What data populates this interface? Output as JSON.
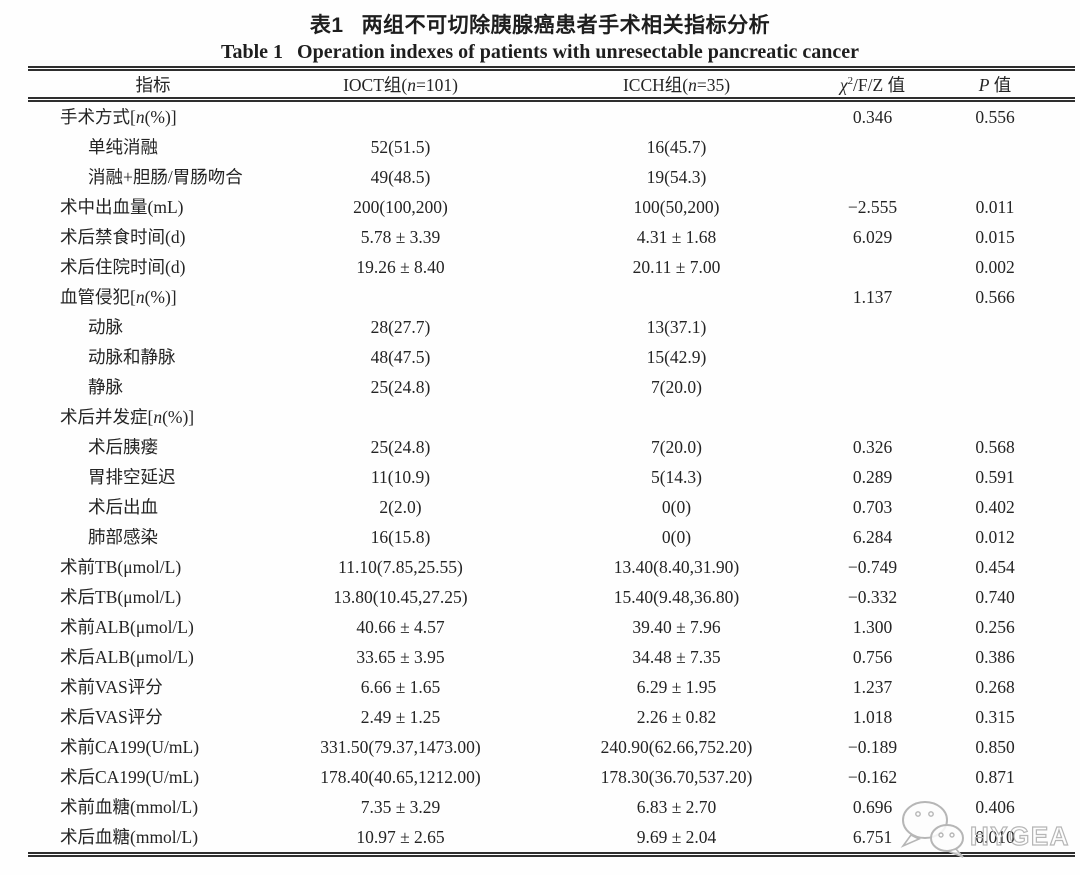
{
  "doc": {
    "title_zh_label": "表1",
    "title_zh": "两组不可切除胰腺癌患者手术相关指标分析",
    "title_en_label": "Table 1",
    "title_en": "Operation indexes of patients with unresectable pancreatic cancer"
  },
  "table": {
    "header": {
      "indicator": "指标",
      "group1": {
        "prefix": "IOCT组(",
        "italic": "n",
        "suffix": "=101)"
      },
      "group2": {
        "prefix": "ICCH组(",
        "italic": "n",
        "suffix": "=35)"
      },
      "stat": {
        "chi": "χ",
        "sup": "2",
        "rest": "/F/Z 值"
      },
      "p": {
        "italic": "P",
        "suffix": " 值"
      }
    },
    "rows": [
      {
        "label": "手术方式[n(%)]",
        "indent": 0,
        "ioct": "",
        "icch": "",
        "stat": "0.346",
        "p": "0.556"
      },
      {
        "label": "单纯消融",
        "indent": 1,
        "ioct": "52(51.5)",
        "icch": "16(45.7)",
        "stat": "",
        "p": ""
      },
      {
        "label": "消融+胆肠/胃肠吻合",
        "indent": 1,
        "ioct": "49(48.5)",
        "icch": "19(54.3)",
        "stat": "",
        "p": ""
      },
      {
        "label": "术中出血量(mL)",
        "indent": 0,
        "ioct": "200(100,200)",
        "icch": "100(50,200)",
        "stat": "−2.555",
        "p": "0.011"
      },
      {
        "label": "术后禁食时间(d)",
        "indent": 0,
        "ioct": "5.78 ± 3.39",
        "icch": "4.31 ± 1.68",
        "stat": "6.029",
        "p": "0.015"
      },
      {
        "label": "术后住院时间(d)",
        "indent": 0,
        "ioct": "19.26 ± 8.40",
        "icch": "20.11 ± 7.00",
        "stat": "",
        "p": "0.002"
      },
      {
        "label": "血管侵犯[n(%)]",
        "indent": 0,
        "ioct": "",
        "icch": "",
        "stat": "1.137",
        "p": "0.566"
      },
      {
        "label": "动脉",
        "indent": 1,
        "ioct": "28(27.7)",
        "icch": "13(37.1)",
        "stat": "",
        "p": ""
      },
      {
        "label": "动脉和静脉",
        "indent": 1,
        "ioct": "48(47.5)",
        "icch": "15(42.9)",
        "stat": "",
        "p": ""
      },
      {
        "label": "静脉",
        "indent": 1,
        "ioct": "25(24.8)",
        "icch": "7(20.0)",
        "stat": "",
        "p": ""
      },
      {
        "label": "术后并发症[n(%)]",
        "indent": 0,
        "ioct": "",
        "icch": "",
        "stat": "",
        "p": ""
      },
      {
        "label": "术后胰瘘",
        "indent": 1,
        "ioct": "25(24.8)",
        "icch": "7(20.0)",
        "stat": "0.326",
        "p": "0.568"
      },
      {
        "label": "胃排空延迟",
        "indent": 1,
        "ioct": "11(10.9)",
        "icch": "5(14.3)",
        "stat": "0.289",
        "p": "0.591"
      },
      {
        "label": "术后出血",
        "indent": 1,
        "ioct": "2(2.0)",
        "icch": "0(0)",
        "stat": "0.703",
        "p": "0.402"
      },
      {
        "label": "肺部感染",
        "indent": 1,
        "ioct": "16(15.8)",
        "icch": "0(0)",
        "stat": "6.284",
        "p": "0.012"
      },
      {
        "label": "术前TB(μmol/L)",
        "indent": 0,
        "ioct": "11.10(7.85,25.55)",
        "icch": "13.40(8.40,31.90)",
        "stat": "−0.749",
        "p": "0.454"
      },
      {
        "label": "术后TB(μmol/L)",
        "indent": 0,
        "ioct": "13.80(10.45,27.25)",
        "icch": "15.40(9.48,36.80)",
        "stat": "−0.332",
        "p": "0.740"
      },
      {
        "label": "术前ALB(μmol/L)",
        "indent": 0,
        "ioct": "40.66 ± 4.57",
        "icch": "39.40 ± 7.96",
        "stat": "1.300",
        "p": "0.256"
      },
      {
        "label": "术后ALB(μmol/L)",
        "indent": 0,
        "ioct": "33.65 ± 3.95",
        "icch": "34.48 ± 7.35",
        "stat": "0.756",
        "p": "0.386"
      },
      {
        "label": "术前VAS评分",
        "indent": 0,
        "ioct": "6.66 ± 1.65",
        "icch": "6.29 ± 1.95",
        "stat": "1.237",
        "p": "0.268"
      },
      {
        "label": "术后VAS评分",
        "indent": 0,
        "ioct": "2.49 ± 1.25",
        "icch": "2.26 ± 0.82",
        "stat": "1.018",
        "p": "0.315"
      },
      {
        "label": "术前CA199(U/mL)",
        "indent": 0,
        "ioct": "331.50(79.37,1473.00)",
        "icch": "240.90(62.66,752.20)",
        "stat": "−0.189",
        "p": "0.850"
      },
      {
        "label": "术后CA199(U/mL)",
        "indent": 0,
        "ioct": "178.40(40.65,1212.00)",
        "icch": "178.30(36.70,537.20)",
        "stat": "−0.162",
        "p": "0.871"
      },
      {
        "label": "术前血糖(mmol/L)",
        "indent": 0,
        "ioct": "7.35 ± 3.29",
        "icch": "6.83 ± 2.70",
        "stat": "0.696",
        "p": "0.406"
      },
      {
        "label": "术后血糖(mmol/L)",
        "indent": 0,
        "ioct": "10.97 ± 2.65",
        "icch": "9.69 ± 2.04",
        "stat": "6.751",
        "p": "0.010"
      }
    ]
  },
  "watermark": {
    "text": "HYGEA",
    "icon": "wechat-icon",
    "color": "#b6b6b6"
  },
  "colors": {
    "text": "#262626",
    "rule": "#2e2e2e",
    "watermark": "#b6b6b6"
  }
}
